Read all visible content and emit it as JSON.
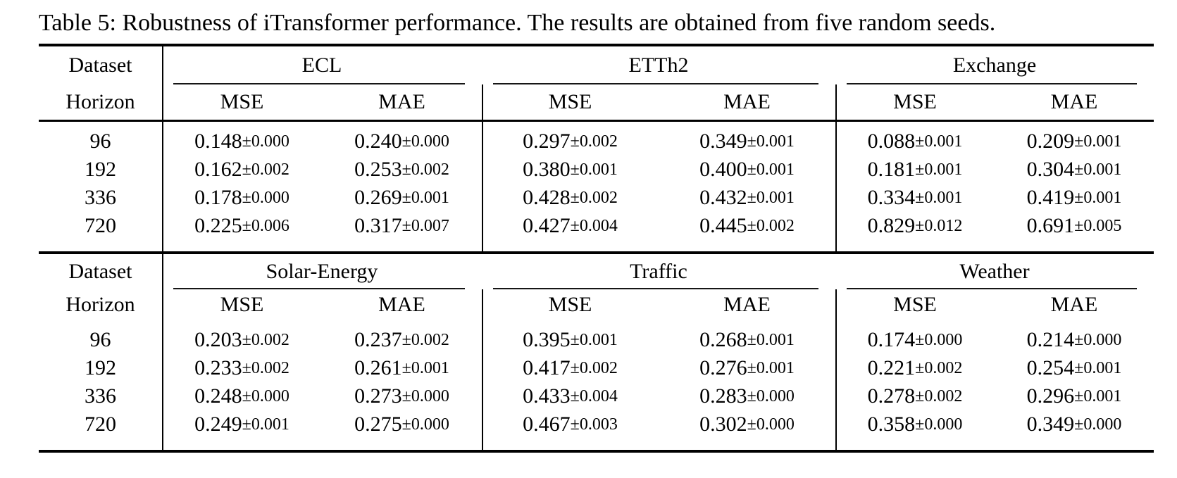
{
  "title": "Table 5: Robustness of iTransformer performance. The results are obtained from five random seeds.",
  "labels": {
    "dataset": "Dataset",
    "horizon": "Horizon",
    "mse": "MSE",
    "mae": "MAE"
  },
  "sections": [
    {
      "datasets": [
        "ECL",
        "ETTh2",
        "Exchange"
      ],
      "rows": [
        {
          "horizon": "96",
          "values": [
            {
              "mean": "0.148",
              "pm": "±0.000"
            },
            {
              "mean": "0.240",
              "pm": "±0.000"
            },
            {
              "mean": "0.297",
              "pm": "±0.002"
            },
            {
              "mean": "0.349",
              "pm": "±0.001"
            },
            {
              "mean": "0.088",
              "pm": "±0.001"
            },
            {
              "mean": "0.209",
              "pm": "±0.001"
            }
          ]
        },
        {
          "horizon": "192",
          "values": [
            {
              "mean": "0.162",
              "pm": "±0.002"
            },
            {
              "mean": "0.253",
              "pm": "±0.002"
            },
            {
              "mean": "0.380",
              "pm": "±0.001"
            },
            {
              "mean": "0.400",
              "pm": "±0.001"
            },
            {
              "mean": "0.181",
              "pm": "±0.001"
            },
            {
              "mean": "0.304",
              "pm": "±0.001"
            }
          ]
        },
        {
          "horizon": "336",
          "values": [
            {
              "mean": "0.178",
              "pm": "±0.000"
            },
            {
              "mean": "0.269",
              "pm": "±0.001"
            },
            {
              "mean": "0.428",
              "pm": "±0.002"
            },
            {
              "mean": "0.432",
              "pm": "±0.001"
            },
            {
              "mean": "0.334",
              "pm": "±0.001"
            },
            {
              "mean": "0.419",
              "pm": "±0.001"
            }
          ]
        },
        {
          "horizon": "720",
          "values": [
            {
              "mean": "0.225",
              "pm": "±0.006"
            },
            {
              "mean": "0.317",
              "pm": "±0.007"
            },
            {
              "mean": "0.427",
              "pm": "±0.004"
            },
            {
              "mean": "0.445",
              "pm": "±0.002"
            },
            {
              "mean": "0.829",
              "pm": "±0.012"
            },
            {
              "mean": "0.691",
              "pm": "±0.005"
            }
          ]
        }
      ]
    },
    {
      "datasets": [
        "Solar-Energy",
        "Traffic",
        "Weather"
      ],
      "rows": [
        {
          "horizon": "96",
          "values": [
            {
              "mean": "0.203",
              "pm": "±0.002"
            },
            {
              "mean": "0.237",
              "pm": "±0.002"
            },
            {
              "mean": "0.395",
              "pm": "±0.001"
            },
            {
              "mean": "0.268",
              "pm": "±0.001"
            },
            {
              "mean": "0.174",
              "pm": "±0.000"
            },
            {
              "mean": "0.214",
              "pm": "±0.000"
            }
          ]
        },
        {
          "horizon": "192",
          "values": [
            {
              "mean": "0.233",
              "pm": "±0.002"
            },
            {
              "mean": "0.261",
              "pm": "±0.001"
            },
            {
              "mean": "0.417",
              "pm": "±0.002"
            },
            {
              "mean": "0.276",
              "pm": "±0.001"
            },
            {
              "mean": "0.221",
              "pm": "±0.002"
            },
            {
              "mean": "0.254",
              "pm": "±0.001"
            }
          ]
        },
        {
          "horizon": "336",
          "values": [
            {
              "mean": "0.248",
              "pm": "±0.000"
            },
            {
              "mean": "0.273",
              "pm": "±0.000"
            },
            {
              "mean": "0.433",
              "pm": "±0.004"
            },
            {
              "mean": "0.283",
              "pm": "±0.000"
            },
            {
              "mean": "0.278",
              "pm": "±0.002"
            },
            {
              "mean": "0.296",
              "pm": "±0.001"
            }
          ]
        },
        {
          "horizon": "720",
          "values": [
            {
              "mean": "0.249",
              "pm": "±0.001"
            },
            {
              "mean": "0.275",
              "pm": "±0.000"
            },
            {
              "mean": "0.467",
              "pm": "±0.003"
            },
            {
              "mean": "0.302",
              "pm": "±0.000"
            },
            {
              "mean": "0.358",
              "pm": "±0.000"
            },
            {
              "mean": "0.349",
              "pm": "±0.000"
            }
          ]
        }
      ]
    }
  ]
}
